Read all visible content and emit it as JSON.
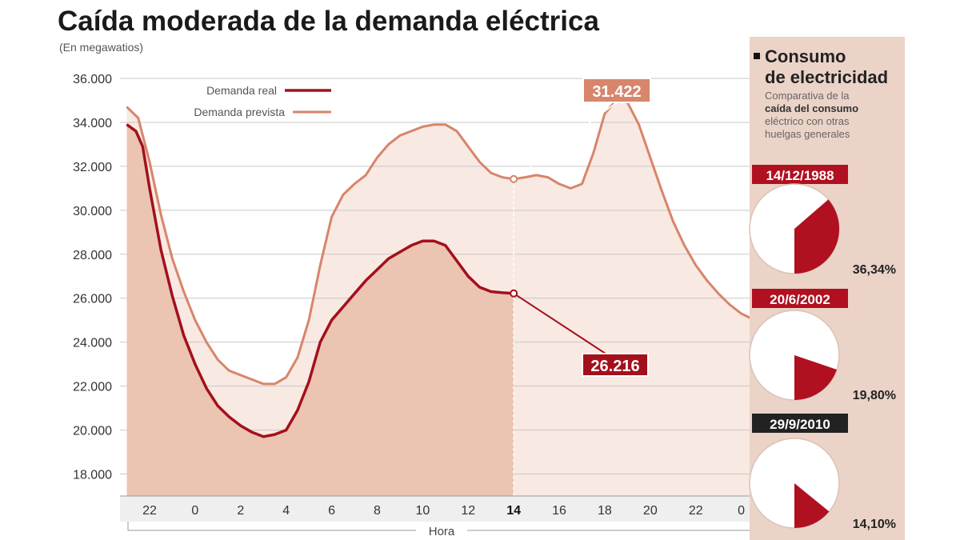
{
  "title": "Caída moderada de la demanda eléctrica",
  "subtitle": "(En megawatios)",
  "colors": {
    "real": "#a3101c",
    "prevista": "#d7856b",
    "real_fill": "#ebc4b2",
    "prevista_fill": "#f8e9e2",
    "panel": "#ebd3c7",
    "pie": "#b01020",
    "date_black": "#222222"
  },
  "chart_data": {
    "type": "line",
    "title": "Caída moderada de la demanda eléctrica",
    "ylabel": "(En megawatios)",
    "xlabel": "Hora",
    "ylim": [
      17000,
      36000
    ],
    "yticks": [
      "36.000",
      "34.000",
      "32.000",
      "30.000",
      "28.000",
      "26.000",
      "24.000",
      "22.000",
      "20.000",
      "18.000"
    ],
    "ytick_values": [
      36000,
      34000,
      32000,
      30000,
      28000,
      26000,
      24000,
      22000,
      20000,
      18000
    ],
    "xticks": [
      "22",
      "0",
      "2",
      "4",
      "6",
      "8",
      "10",
      "12",
      "14",
      "16",
      "18",
      "20",
      "22",
      "0"
    ],
    "xtick_values": [
      0,
      2,
      4,
      6,
      8,
      10,
      12,
      14,
      16,
      18,
      20,
      22,
      24,
      26
    ],
    "xlim": [
      -1.3,
      26.4
    ],
    "grid": true,
    "legend": "top-left",
    "series": [
      {
        "name": "Demanda real",
        "x": [
          -1.0,
          -0.6,
          -0.3,
          0.0,
          0.5,
          1.0,
          1.5,
          2.0,
          2.5,
          3.0,
          3.5,
          4.0,
          4.5,
          5.0,
          5.5,
          6.0,
          6.5,
          7.0,
          7.5,
          8.0,
          8.5,
          9.0,
          9.5,
          10.0,
          10.5,
          11.0,
          11.5,
          12.0,
          12.5,
          13.0,
          13.5,
          14.0,
          14.5,
          15.0,
          15.5,
          16.0
        ],
        "y": [
          33900,
          33600,
          32900,
          31000,
          28200,
          26100,
          24300,
          23000,
          21900,
          21100,
          20600,
          20200,
          19900,
          19700,
          19800,
          20000,
          20900,
          22200,
          24000,
          25000,
          25600,
          26200,
          26800,
          27300,
          27800,
          28100,
          28400,
          28600,
          28600,
          28400,
          27700,
          27000,
          26500,
          26300,
          26250,
          26216
        ]
      },
      {
        "name": "Demanda prevista",
        "x": [
          -1.0,
          -0.5,
          0.0,
          0.5,
          1.0,
          1.5,
          2.0,
          2.5,
          3.0,
          3.5,
          4.0,
          4.5,
          5.0,
          5.5,
          6.0,
          6.5,
          7.0,
          7.5,
          8.0,
          8.5,
          9.0,
          9.5,
          10.0,
          10.5,
          11.0,
          11.5,
          12.0,
          12.5,
          13.0,
          13.5,
          14.0,
          14.5,
          15.0,
          15.5,
          16.0,
          16.5,
          17.0,
          17.5,
          18.0,
          18.5,
          19.0,
          19.5,
          20.0,
          20.5,
          21.0,
          21.5,
          22.0,
          22.5,
          23.0,
          23.5,
          24.0,
          24.5,
          25.0,
          25.5,
          26.0,
          26.4
        ],
        "y": [
          34700,
          34200,
          32200,
          29800,
          27800,
          26300,
          25000,
          24000,
          23200,
          22700,
          22500,
          22300,
          22100,
          22100,
          22400,
          23300,
          25000,
          27500,
          29700,
          30700,
          31200,
          31600,
          32400,
          33000,
          33400,
          33600,
          33800,
          33900,
          33900,
          33600,
          32900,
          32200,
          31700,
          31500,
          31422,
          31500,
          31600,
          31500,
          31200,
          31000,
          31200,
          32600,
          34400,
          35000,
          34900,
          33900,
          32400,
          30900,
          29500,
          28400,
          27500,
          26800,
          26200,
          25700,
          25300,
          25100
        ]
      }
    ],
    "annotations": [
      {
        "label": "31.422",
        "x": 16,
        "y": 31422,
        "series": "Demanda prevista"
      },
      {
        "label": "26.216",
        "x": 16,
        "y": 26216,
        "series": "Demanda real"
      }
    ]
  },
  "legend": {
    "real": "Demanda real",
    "prevista": "Demanda prevista"
  },
  "callouts": {
    "prevista": "31.422",
    "real": "26.216"
  },
  "sidebar": {
    "title_line1": "Consumo",
    "title_line2": "de electricidad",
    "sub_line1": "Comparativa de la",
    "sub_line2": "caída del consumo",
    "sub_line3": "eléctrico con otras",
    "sub_line4": "huelgas generales",
    "strikes": [
      {
        "date": "14/12/1988",
        "percent_label": "36,34%",
        "percent": 36.34,
        "badge_color": "#b01020"
      },
      {
        "date": "20/6/2002",
        "percent_label": "19,80%",
        "percent": 19.8,
        "badge_color": "#b01020"
      },
      {
        "date": "29/9/2010",
        "percent_label": "14,10%",
        "percent": 14.1,
        "badge_color": "#222222"
      }
    ]
  }
}
